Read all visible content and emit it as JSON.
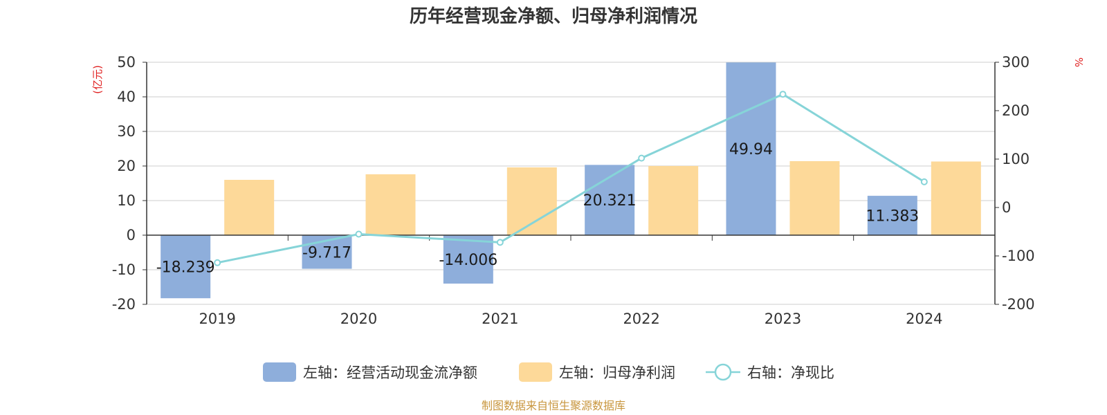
{
  "chart_data": {
    "type": "bar",
    "title": "历年经营现金净额、归母净利润情况",
    "categories": [
      "2019",
      "2020",
      "2021",
      "2022",
      "2023",
      "2024"
    ],
    "left_axis": {
      "unit": "(亿元)",
      "ylim": [
        -20,
        50
      ],
      "ticks": [
        "50",
        "40",
        "30",
        "20",
        "10",
        "0",
        "-10",
        "-20"
      ]
    },
    "right_axis": {
      "unit": "%",
      "ylim": [
        -200,
        300
      ],
      "ticks": [
        "300",
        "200",
        "100",
        "0",
        "-100",
        "-200"
      ]
    },
    "series": [
      {
        "name": "左轴：经营活动现金流净额",
        "type": "bar",
        "axis": "left",
        "color": "#8eaedb",
        "values": [
          -18.239,
          -9.717,
          -14.006,
          20.321,
          49.94,
          11.383
        ],
        "labels": [
          "-18.239",
          "-9.717",
          "-14.006",
          "20.321",
          "49.94",
          "11.383"
        ]
      },
      {
        "name": "左轴：归母净利润",
        "type": "bar",
        "axis": "left",
        "color": "#fdd999",
        "values": [
          16.0,
          17.6,
          19.6,
          20.0,
          21.4,
          21.3
        ]
      },
      {
        "name": "右轴：净现比",
        "type": "line",
        "axis": "right",
        "color": "#86d4d8",
        "values": [
          -114,
          -55,
          -72,
          102,
          234,
          53
        ]
      }
    ],
    "grid": true,
    "legend_position": "bottom"
  },
  "source_note": "制图数据来自恒生聚源数据库"
}
